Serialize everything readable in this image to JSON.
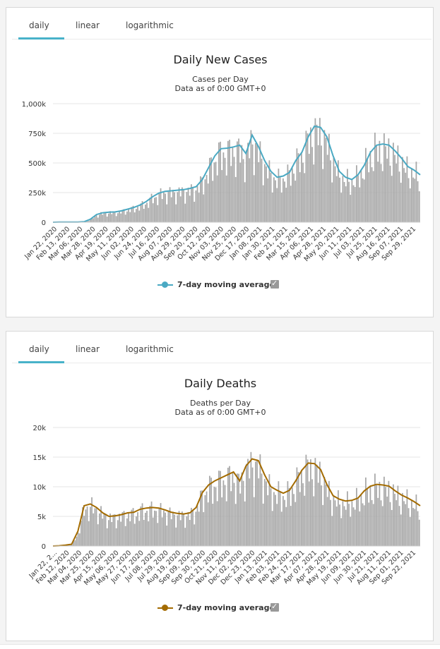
{
  "tabs": [
    "daily",
    "linear",
    "logarithmic"
  ],
  "colors": {
    "bar": "#a8a8a8",
    "cases_line": "#4aa9c3",
    "deaths_line": "#a36b00",
    "tab_underline": "#48b2c9"
  },
  "legend_check_icon": "checkbox-checked-icon",
  "chart_data": [
    {
      "type": "bar",
      "title": "Daily New Cases",
      "subtitle": [
        "Cases per Day",
        "Data as of 0:00 GMT+0"
      ],
      "xlabel": "",
      "ylabel": "",
      "ylim": [
        0,
        1000000
      ],
      "yticks": [
        0,
        250000,
        500000,
        750000,
        1000000
      ],
      "ytick_labels": [
        "0",
        "250k",
        "500k",
        "750k",
        "1,000k"
      ],
      "xtick_labels": [
        "Jan 22, 2020",
        "Feb 13, 2020",
        "Mar 06, 2020",
        "Mar 28, 2020",
        "Apr 19, 2020",
        "May 11, 2020",
        "Jun 02, 2020",
        "Jun 24, 2020",
        "Jul 16, 2020",
        "Aug 07, 2020",
        "Aug 29, 2020",
        "Sep 20, 2020",
        "Oct 12, 2020",
        "Nov 03, 2020",
        "Nov 25, 2020",
        "Dec 17, 2020",
        "Jan 08, 2021",
        "Jan 30, 2021",
        "Feb 21, 2021",
        "Mar 15, 2021",
        "Apr 06, 2021",
        "Apr 28, 2021",
        "May 20, 2021",
        "Jun 11, 2021",
        "Jul 03, 2021",
        "Jul 25, 2021",
        "Aug 16, 2021",
        "Sep 07, 2021",
        "Sep 29, 2021"
      ],
      "grid": true,
      "legend": "bottom-center",
      "series": [
        {
          "name": "7-day moving average",
          "type": "line",
          "values": [
            0,
            2000,
            2000,
            1000,
            2000,
            4000,
            25000,
            65000,
            80000,
            85000,
            87000,
            96000,
            110000,
            125000,
            145000,
            175000,
            215000,
            245000,
            260000,
            265000,
            270000,
            275000,
            285000,
            300000,
            360000,
            460000,
            560000,
            620000,
            625000,
            635000,
            650000,
            580000,
            735000,
            640000,
            520000,
            430000,
            380000,
            390000,
            420000,
            520000,
            590000,
            720000,
            810000,
            800000,
            720000,
            560000,
            430000,
            380000,
            360000,
            400000,
            480000,
            590000,
            650000,
            660000,
            650000,
            600000,
            540000,
            470000,
            440000,
            400000
          ]
        }
      ]
    },
    {
      "type": "bar",
      "title": "Daily Deaths",
      "subtitle": [
        "Deaths per Day",
        "Data as of 0:00 GMT+0"
      ],
      "xlabel": "",
      "ylabel": "",
      "ylim": [
        0,
        20000
      ],
      "yticks": [
        0,
        5000,
        10000,
        15000,
        20000
      ],
      "ytick_labels": [
        "0",
        "5k",
        "10k",
        "15k",
        "20k"
      ],
      "xtick_labels": [
        "Jan 22, 2...",
        "Feb 12, 2020",
        "Mar 04, 2020",
        "Mar 25, 2020",
        "Apr 15, 2020",
        "May 06, 2020",
        "May 27, 2020",
        "Jun 17, 2020",
        "Jul 08, 2020",
        "Jul 29, 2020",
        "Aug 19, 2020",
        "Sep 09, 2020",
        "Sep 30, 2020",
        "Oct 21, 2020",
        "Nov 11, 2020",
        "Dec 02, 2020",
        "Dec 23, 2020",
        "Jan 13, 2021",
        "Feb 03, 2021",
        "Feb 24, 2021",
        "Mar 17, 2021",
        "Apr 07, 2021",
        "Apr 28, 2021",
        "May 19, 2021",
        "Jun 09, 2021",
        "Jun 30, 2021",
        "Jul 21, 2021",
        "Aug 11, 2021",
        "Sep 01, 2021",
        "Sep 22, 2021"
      ],
      "grid": true,
      "legend": "bottom-center",
      "series": [
        {
          "name": "7-day moving average",
          "type": "line",
          "values": [
            0,
            50,
            150,
            300,
            2500,
            6800,
            7100,
            6500,
            5600,
            5000,
            5100,
            5300,
            5600,
            5700,
            6200,
            6400,
            6500,
            6400,
            6100,
            5700,
            5500,
            5400,
            5600,
            6500,
            9000,
            10300,
            11000,
            11500,
            12000,
            12500,
            11000,
            13500,
            14700,
            14400,
            12000,
            10000,
            9400,
            8900,
            9400,
            11000,
            12800,
            14000,
            13900,
            12900,
            10400,
            8500,
            7900,
            7600,
            7700,
            8100,
            9300,
            10100,
            10400,
            10300,
            10100,
            9300,
            8600,
            8100,
            7500,
            6800
          ]
        }
      ]
    }
  ]
}
